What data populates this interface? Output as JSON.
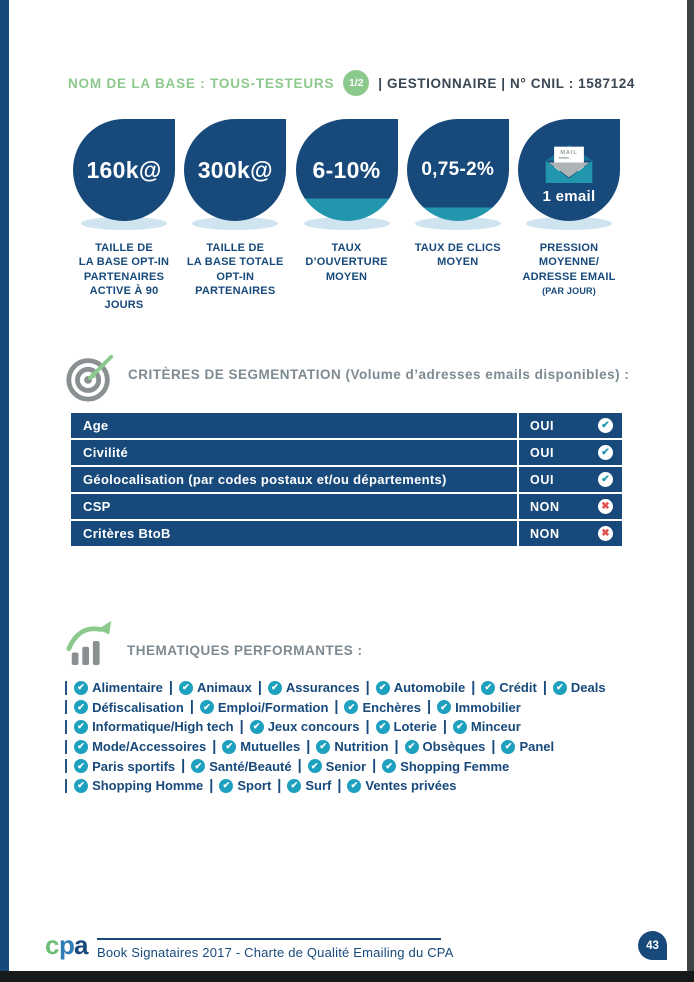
{
  "colors": {
    "navy": "#17497B",
    "teal": "#2196AD",
    "teal_bright": "#1EA0BF",
    "green": "#8CC98C",
    "gray_title": "#7E8A91",
    "red": "#E0504F",
    "shadow_blue": "#CFE4EF",
    "ink": "#3A4754"
  },
  "icons": {
    "check_glyph": "✔",
    "cross_glyph": "✖"
  },
  "header": {
    "base_label": "NOM DE LA BASE : TOUS-TESTEURS",
    "badge": "1/2",
    "manager_info": "| GESTIONNAIRE | N° CNIL : 1587124"
  },
  "stats": [
    {
      "value": "160k@",
      "label": "TAILLE DE\nLA BASE OPT-IN\nPARTENAIRES\nACTIVE À 90 JOURS"
    },
    {
      "value": "300k@",
      "label": "TAILLE DE\nLA BASE TOTALE\nOPT-IN\nPARTENAIRES"
    },
    {
      "value": "6-10%",
      "label": "TAUX\nD’OUVERTURE\nMOYEN",
      "gauge_fill_pct": 22
    },
    {
      "value": "0,75-2%",
      "label": "TAUX DE CLICS\nMOYEN",
      "gauge_fill_pct": 13
    },
    {
      "icon": "envelope",
      "icon_text": "MAIL",
      "value": "1 email",
      "label": "PRESSION\nMOYENNE/\nADRESSE EMAIL",
      "sublabel": "(PAR JOUR)"
    }
  ],
  "segmentation": {
    "title": "CRITÈRES DE SEGMENTATION (Volume d’adresses emails disponibles) :",
    "rows": [
      {
        "label": "Age",
        "value": "OUI",
        "ok": true
      },
      {
        "label": "Civilité",
        "value": "OUI",
        "ok": true
      },
      {
        "label": "Géolocalisation (par codes postaux et/ou départements)",
        "value": "OUI",
        "ok": true
      },
      {
        "label": "CSP",
        "value": "NON",
        "ok": false
      },
      {
        "label": "Critères BtoB",
        "value": "NON",
        "ok": false
      }
    ]
  },
  "thematiques": {
    "title": "THEMATIQUES PERFORMANTES :",
    "separator": "|",
    "lines": [
      [
        "Alimentaire",
        "Animaux",
        "Assurances",
        "Automobile",
        "Crédit",
        "Deals"
      ],
      [
        "Défiscalisation",
        "Emploi/Formation",
        "Enchères",
        "Immobilier"
      ],
      [
        "Informatique/High tech",
        "Jeux concours",
        "Loterie",
        "Minceur"
      ],
      [
        "Mode/Accessoires",
        "Mutuelles",
        "Nutrition",
        "Obsèques",
        "Panel"
      ],
      [
        "Paris sportifs",
        "Santé/Beauté",
        "Senior",
        "Shopping Femme"
      ],
      [
        "Shopping Homme",
        "Sport",
        "Surf",
        "Ventes privées"
      ]
    ]
  },
  "footer": {
    "logo": [
      "c",
      "p",
      "a"
    ],
    "text": "Book Signataires 2017 - Charte de Qualité Emailing du CPA",
    "page_number": "43"
  }
}
